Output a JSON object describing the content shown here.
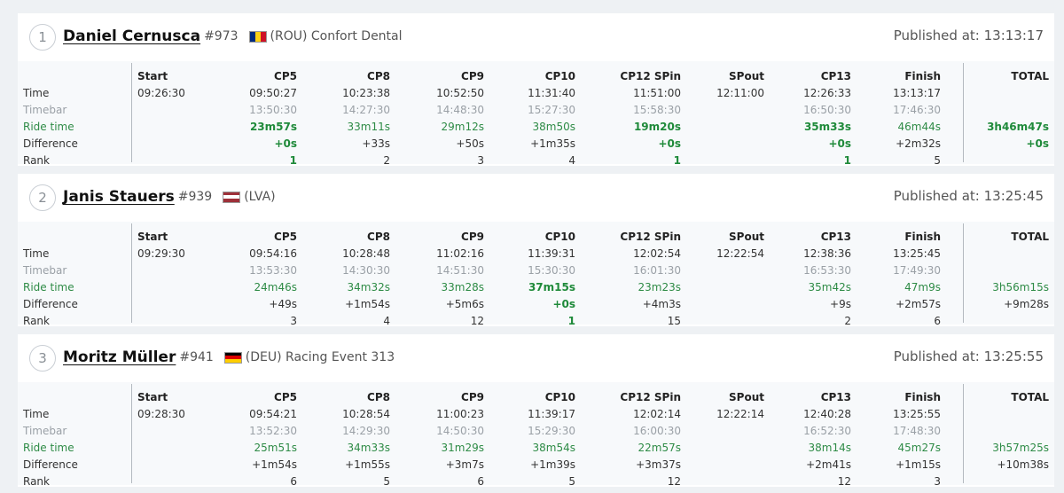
{
  "columns": [
    "Start",
    "CP5",
    "CP8",
    "CP9",
    "CP10",
    "CP12 SPin",
    "SPout",
    "CP13",
    "Finish",
    "TOTAL"
  ],
  "row_labels": [
    "Time",
    "Timebar",
    "Ride time",
    "Difference",
    "Rank"
  ],
  "published_label": "Published at:",
  "colors": {
    "ride_time": "#2e8b46",
    "timebar": "#9aa0a6",
    "best": "#1f8a3a",
    "background": "#eef1f4"
  },
  "results": [
    {
      "position": "1",
      "name": "Daniel Cernusca",
      "bib": "#973",
      "flag": "romania-flag",
      "flag_colors": [
        "#002b7f",
        "#fcd116",
        "#ce1126"
      ],
      "flag_orientation": "vertical",
      "country_team": "(ROU) Confort Dental",
      "published": "13:13:17",
      "time": [
        "09:26:30",
        "09:50:27",
        "10:23:38",
        "10:52:50",
        "11:31:40",
        "11:51:00",
        "12:11:00",
        "12:26:33",
        "13:13:17",
        ""
      ],
      "timebar": [
        "",
        "13:50:30",
        "14:27:30",
        "14:48:30",
        "15:27:30",
        "15:58:30",
        "",
        "16:50:30",
        "17:46:30",
        ""
      ],
      "ride_time": [
        "",
        "23m57s",
        "33m11s",
        "29m12s",
        "38m50s",
        "19m20s",
        "",
        "35m33s",
        "46m44s",
        "3h46m47s"
      ],
      "difference": [
        "",
        "+0s",
        "+33s",
        "+50s",
        "+1m35s",
        "+0s",
        "",
        "+0s",
        "+2m32s",
        "+0s"
      ],
      "rank": [
        "",
        "1",
        "2",
        "3",
        "4",
        "1",
        "",
        "1",
        "5",
        ""
      ],
      "best": [
        1,
        5,
        7,
        9
      ]
    },
    {
      "position": "2",
      "name": "Janis Stauers",
      "bib": "#939",
      "flag": "latvia-flag",
      "flag_colors": [
        "#9e3039",
        "#ffffff",
        "#9e3039"
      ],
      "flag_orientation": "horizontal",
      "country_team": "(LVA)",
      "published": "13:25:45",
      "time": [
        "09:29:30",
        "09:54:16",
        "10:28:48",
        "11:02:16",
        "11:39:31",
        "12:02:54",
        "12:22:54",
        "12:38:36",
        "13:25:45",
        ""
      ],
      "timebar": [
        "",
        "13:53:30",
        "14:30:30",
        "14:51:30",
        "15:30:30",
        "16:01:30",
        "",
        "16:53:30",
        "17:49:30",
        ""
      ],
      "ride_time": [
        "",
        "24m46s",
        "34m32s",
        "33m28s",
        "37m15s",
        "23m23s",
        "",
        "35m42s",
        "47m9s",
        "3h56m15s"
      ],
      "difference": [
        "",
        "+49s",
        "+1m54s",
        "+5m6s",
        "+0s",
        "+4m3s",
        "",
        "+9s",
        "+2m57s",
        "+9m28s"
      ],
      "rank": [
        "",
        "3",
        "4",
        "12",
        "1",
        "15",
        "",
        "2",
        "6",
        ""
      ],
      "best": [
        4
      ]
    },
    {
      "position": "3",
      "name": "Moritz Müller",
      "bib": "#941",
      "flag": "germany-flag",
      "flag_colors": [
        "#000000",
        "#dd0000",
        "#ffce00"
      ],
      "flag_orientation": "horizontal",
      "country_team": "(DEU) Racing Event 313",
      "published": "13:25:55",
      "time": [
        "09:28:30",
        "09:54:21",
        "10:28:54",
        "11:00:23",
        "11:39:17",
        "12:02:14",
        "12:22:14",
        "12:40:28",
        "13:25:55",
        ""
      ],
      "timebar": [
        "",
        "13:52:30",
        "14:29:30",
        "14:50:30",
        "15:29:30",
        "16:00:30",
        "",
        "16:52:30",
        "17:48:30",
        ""
      ],
      "ride_time": [
        "",
        "25m51s",
        "34m33s",
        "31m29s",
        "38m54s",
        "22m57s",
        "",
        "38m14s",
        "45m27s",
        "3h57m25s"
      ],
      "difference": [
        "",
        "+1m54s",
        "+1m55s",
        "+3m7s",
        "+1m39s",
        "+3m37s",
        "",
        "+2m41s",
        "+1m15s",
        "+10m38s"
      ],
      "rank": [
        "",
        "6",
        "5",
        "6",
        "5",
        "12",
        "",
        "12",
        "3",
        ""
      ],
      "best": []
    }
  ]
}
